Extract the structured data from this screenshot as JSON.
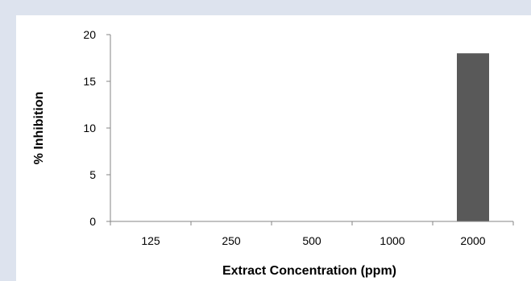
{
  "chart_data": {
    "type": "bar",
    "categories": [
      "125",
      "250",
      "500",
      "1000",
      "2000"
    ],
    "values": [
      0,
      0,
      0,
      0,
      18
    ],
    "title": "",
    "xlabel": "Extract Concentration (ppm)",
    "ylabel": "% Inhibition",
    "ylim": [
      0,
      20
    ],
    "yticks": [
      "0",
      "5",
      "10",
      "15",
      "20"
    ],
    "grid": false,
    "legend": "none",
    "bar_color": "#595959",
    "axis_color": "#868686",
    "background_frame_color": "#dde3ee"
  }
}
